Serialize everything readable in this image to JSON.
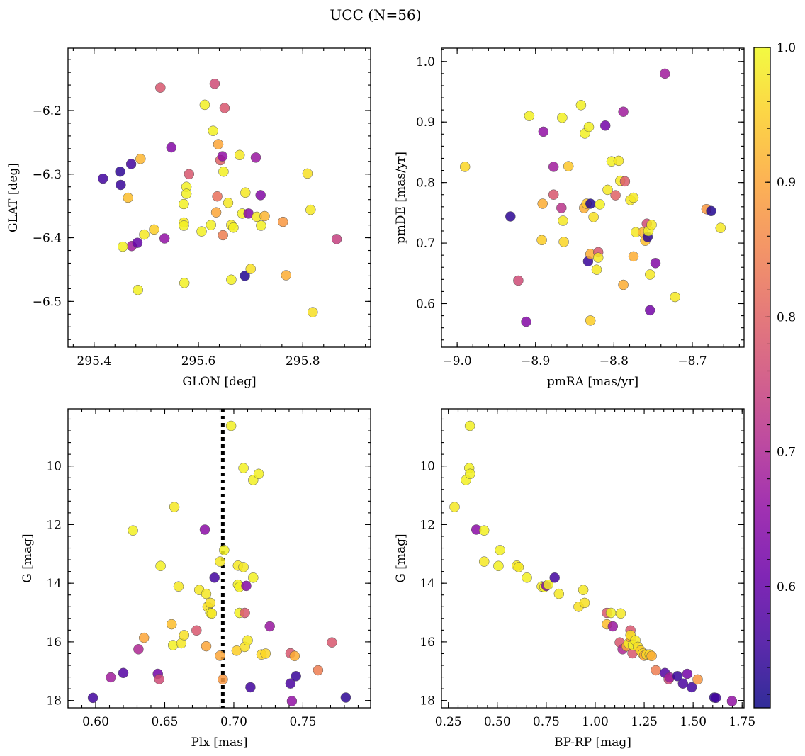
{
  "figure": {
    "title": "UCC (N=56)"
  },
  "colorbar": {
    "vmin": 0.51,
    "vmax": 1.0,
    "ticks": [
      0.6,
      0.7,
      0.8,
      0.9,
      1.0
    ],
    "tick_labels": [
      "0.6",
      "0.7",
      "0.8",
      "0.9",
      "1.0"
    ],
    "colormap": "plasma"
  },
  "chart_data": [
    {
      "type": "scatter",
      "id": "glon-glat",
      "xlabel": "GLON [deg]",
      "ylabel": "GLAT [deg]",
      "xlim": [
        295.35,
        295.93
      ],
      "ylim": [
        -6.572,
        -6.102
      ],
      "xticks": [
        295.4,
        295.6,
        295.8
      ],
      "xtick_labels": [
        "295.4",
        "295.6",
        "295.8"
      ],
      "yticks": [
        -6.2,
        -6.3,
        -6.4,
        -6.5
      ],
      "ytick_labels": [
        "−6.2",
        "−6.3",
        "−6.4",
        "−6.5"
      ],
      "invert_y": false,
      "points": [
        [
          295.417,
          -6.307,
          0.56
        ],
        [
          295.45,
          -6.296,
          0.54
        ],
        [
          295.451,
          -6.317,
          0.55
        ],
        [
          295.471,
          -6.284,
          0.56
        ],
        [
          295.489,
          -6.276,
          0.92
        ],
        [
          295.465,
          -6.337,
          0.93
        ],
        [
          295.472,
          -6.413,
          0.68
        ],
        [
          295.455,
          -6.414,
          0.99
        ],
        [
          295.483,
          -6.408,
          0.6
        ],
        [
          295.496,
          -6.395,
          0.98
        ],
        [
          295.515,
          -6.387,
          0.95
        ],
        [
          295.535,
          -6.401,
          0.66
        ],
        [
          295.484,
          -6.482,
          0.99
        ],
        [
          295.527,
          -6.164,
          0.78
        ],
        [
          295.548,
          -6.258,
          0.64
        ],
        [
          295.582,
          -6.3,
          0.78
        ],
        [
          295.577,
          -6.32,
          0.99
        ],
        [
          295.577,
          -6.331,
          0.99
        ],
        [
          295.572,
          -6.347,
          0.99
        ],
        [
          295.572,
          -6.376,
          0.98
        ],
        [
          295.572,
          -6.381,
          0.99
        ],
        [
          295.573,
          -6.471,
          0.99
        ],
        [
          295.606,
          -6.39,
          0.99
        ],
        [
          295.612,
          -6.191,
          0.99
        ],
        [
          295.628,
          -6.232,
          0.99
        ],
        [
          295.631,
          -6.158,
          0.76
        ],
        [
          295.65,
          -6.196,
          0.78
        ],
        [
          295.638,
          -6.253,
          0.9
        ],
        [
          295.642,
          -6.278,
          0.8
        ],
        [
          295.646,
          -6.272,
          0.66
        ],
        [
          295.648,
          -6.296,
          0.99
        ],
        [
          295.624,
          -6.38,
          0.99
        ],
        [
          295.636,
          -6.335,
          0.82
        ],
        [
          295.634,
          -6.36,
          0.9
        ],
        [
          295.647,
          -6.396,
          0.84
        ],
        [
          295.657,
          -6.345,
          0.98
        ],
        [
          295.663,
          -6.38,
          0.98
        ],
        [
          295.667,
          -6.384,
          0.99
        ],
        [
          295.663,
          -6.466,
          0.99
        ],
        [
          295.679,
          -6.27,
          0.98
        ],
        [
          295.69,
          -6.329,
          0.98
        ],
        [
          295.684,
          -6.362,
          0.99
        ],
        [
          295.696,
          -6.362,
          0.64
        ],
        [
          295.689,
          -6.46,
          0.53
        ],
        [
          295.7,
          -6.449,
          0.97
        ],
        [
          295.71,
          -6.274,
          0.67
        ],
        [
          295.712,
          -6.367,
          0.98
        ],
        [
          295.719,
          -6.333,
          0.64
        ],
        [
          295.72,
          -6.381,
          0.99
        ],
        [
          295.727,
          -6.366,
          0.92
        ],
        [
          295.762,
          -6.375,
          0.88
        ],
        [
          295.768,
          -6.459,
          0.91
        ],
        [
          295.809,
          -6.299,
          0.97
        ],
        [
          295.815,
          -6.356,
          0.98
        ],
        [
          295.819,
          -6.517,
          0.97
        ],
        [
          295.865,
          -6.402,
          0.74
        ]
      ]
    },
    {
      "type": "scatter",
      "id": "pmra-pmde",
      "xlabel": "pmRA [mas/yr]",
      "ylabel": "pmDE [mas/yr]",
      "xlim": [
        -9.02,
        -8.634
      ],
      "ylim": [
        0.528,
        1.022
      ],
      "xticks": [
        -9.0,
        -8.9,
        -8.8,
        -8.7
      ],
      "xtick_labels": [
        "−9.0",
        "−8.9",
        "−8.8",
        "−8.7"
      ],
      "yticks": [
        0.6,
        0.7,
        0.8,
        0.9,
        1.0
      ],
      "ytick_labels": [
        "0.6",
        "0.7",
        "0.8",
        "0.9",
        "1.0"
      ],
      "invert_y": false,
      "points": [
        [
          -8.99,
          0.826,
          0.96
        ],
        [
          -8.932,
          0.744,
          0.54
        ],
        [
          -8.922,
          0.638,
          0.76
        ],
        [
          -8.912,
          0.57,
          0.64
        ],
        [
          -8.908,
          0.91,
          0.99
        ],
        [
          -8.89,
          0.884,
          0.66
        ],
        [
          -8.891,
          0.765,
          0.91
        ],
        [
          -8.892,
          0.705,
          0.95
        ],
        [
          -8.877,
          0.826,
          0.68
        ],
        [
          -8.877,
          0.78,
          0.78
        ],
        [
          -8.866,
          0.907,
          0.99
        ],
        [
          -8.867,
          0.758,
          0.72
        ],
        [
          -8.865,
          0.737,
          0.98
        ],
        [
          -8.864,
          0.702,
          0.96
        ],
        [
          -8.858,
          0.827,
          0.94
        ],
        [
          -8.842,
          0.928,
          0.99
        ],
        [
          -8.837,
          0.881,
          0.99
        ],
        [
          -8.832,
          0.892,
          0.99
        ],
        [
          -8.838,
          0.758,
          0.91
        ],
        [
          -8.835,
          0.765,
          0.94
        ],
        [
          -8.83,
          0.765,
          0.53
        ],
        [
          -8.83,
          0.572,
          0.95
        ],
        [
          -8.833,
          0.67,
          0.55
        ],
        [
          -8.83,
          0.682,
          0.91
        ],
        [
          -8.826,
          0.743,
          0.97
        ],
        [
          -8.82,
          0.685,
          0.78
        ],
        [
          -8.82,
          0.676,
          0.98
        ],
        [
          -8.822,
          0.656,
          0.98
        ],
        [
          -8.818,
          0.764,
          0.99
        ],
        [
          -8.811,
          0.894,
          0.62
        ],
        [
          -8.808,
          0.788,
          0.98
        ],
        [
          -8.803,
          0.835,
          0.99
        ],
        [
          -8.798,
          0.779,
          0.8
        ],
        [
          -8.794,
          0.836,
          0.98
        ],
        [
          -8.792,
          0.803,
          0.98
        ],
        [
          -8.788,
          0.917,
          0.68
        ],
        [
          -8.786,
          0.802,
          0.79
        ],
        [
          -8.788,
          0.631,
          0.91
        ],
        [
          -8.779,
          0.771,
          0.98
        ],
        [
          -8.775,
          0.775,
          0.98
        ],
        [
          -8.775,
          0.678,
          0.91
        ],
        [
          -8.772,
          0.718,
          0.98
        ],
        [
          -8.763,
          0.718,
          0.92
        ],
        [
          -8.76,
          0.704,
          0.93
        ],
        [
          -8.758,
          0.732,
          0.76
        ],
        [
          -8.757,
          0.71,
          0.54
        ],
        [
          -8.756,
          0.72,
          0.99
        ],
        [
          -8.752,
          0.73,
          0.98
        ],
        [
          -8.754,
          0.648,
          0.98
        ],
        [
          -8.754,
          0.589,
          0.62
        ],
        [
          -8.747,
          0.667,
          0.64
        ],
        [
          -8.735,
          0.98,
          0.68
        ],
        [
          -8.722,
          0.611,
          0.98
        ],
        [
          -8.682,
          0.756,
          0.88
        ],
        [
          -8.676,
          0.753,
          0.53
        ],
        [
          -8.664,
          0.725,
          0.98
        ]
      ]
    },
    {
      "type": "scatter",
      "id": "plx-g",
      "xlabel": "Plx [mas]",
      "ylabel": "G [mag]",
      "xlim": [
        0.58,
        0.799
      ],
      "ylim": [
        18.25,
        8.05
      ],
      "xticks": [
        0.6,
        0.65,
        0.7,
        0.75
      ],
      "xtick_labels": [
        "0.60",
        "0.65",
        "0.70",
        "0.75"
      ],
      "yticks": [
        10,
        12,
        14,
        16,
        18
      ],
      "ytick_labels": [
        "10",
        "12",
        "14",
        "16",
        "18"
      ],
      "invert_y": true,
      "vline": 0.692,
      "points": [
        [
          0.598,
          17.91,
          0.56
        ],
        [
          0.611,
          17.21,
          0.68
        ],
        [
          0.62,
          17.06,
          0.58
        ],
        [
          0.627,
          12.2,
          0.99
        ],
        [
          0.631,
          16.25,
          0.7
        ],
        [
          0.635,
          15.86,
          0.9
        ],
        [
          0.645,
          17.09,
          0.62
        ],
        [
          0.646,
          17.27,
          0.76
        ],
        [
          0.647,
          13.41,
          0.99
        ],
        [
          0.655,
          15.4,
          0.93
        ],
        [
          0.656,
          16.11,
          0.99
        ],
        [
          0.657,
          11.4,
          0.98
        ],
        [
          0.66,
          14.11,
          0.98
        ],
        [
          0.662,
          16.05,
          0.98
        ],
        [
          0.664,
          15.77,
          0.97
        ],
        [
          0.673,
          15.61,
          0.78
        ],
        [
          0.675,
          14.23,
          0.98
        ],
        [
          0.679,
          12.17,
          0.65
        ],
        [
          0.68,
          16.15,
          0.9
        ],
        [
          0.68,
          14.36,
          0.98
        ],
        [
          0.681,
          14.8,
          0.97
        ],
        [
          0.683,
          14.67,
          0.97
        ],
        [
          0.683,
          15.01,
          0.99
        ],
        [
          0.684,
          15.03,
          0.98
        ],
        [
          0.686,
          13.81,
          0.56
        ],
        [
          0.69,
          16.47,
          0.9
        ],
        [
          0.69,
          13.26,
          0.98
        ],
        [
          0.692,
          17.28,
          0.88
        ],
        [
          0.693,
          12.87,
          0.99
        ],
        [
          0.698,
          8.63,
          0.99
        ],
        [
          0.702,
          16.3,
          0.95
        ],
        [
          0.703,
          13.4,
          0.98
        ],
        [
          0.703,
          14.05,
          0.99
        ],
        [
          0.704,
          14.13,
          0.99
        ],
        [
          0.704,
          15.01,
          0.99
        ],
        [
          0.707,
          10.07,
          0.99
        ],
        [
          0.707,
          13.45,
          0.98
        ],
        [
          0.708,
          15.01,
          0.78
        ],
        [
          0.708,
          16.17,
          0.97
        ],
        [
          0.709,
          14.09,
          0.64
        ],
        [
          0.71,
          15.95,
          0.98
        ],
        [
          0.712,
          17.55,
          0.56
        ],
        [
          0.714,
          10.48,
          0.99
        ],
        [
          0.714,
          13.81,
          0.99
        ],
        [
          0.718,
          10.27,
          0.99
        ],
        [
          0.72,
          16.43,
          0.96
        ],
        [
          0.723,
          16.4,
          0.96
        ],
        [
          0.726,
          15.47,
          0.67
        ],
        [
          0.741,
          16.39,
          0.78
        ],
        [
          0.741,
          17.42,
          0.57
        ],
        [
          0.742,
          18.02,
          0.66
        ],
        [
          0.744,
          16.48,
          0.91
        ],
        [
          0.745,
          17.17,
          0.55
        ],
        [
          0.761,
          16.97,
          0.84
        ],
        [
          0.771,
          16.02,
          0.78
        ],
        [
          0.781,
          17.9,
          0.54
        ]
      ]
    },
    {
      "type": "scatter",
      "id": "bprp-g",
      "xlabel": "BP-RP [mag]",
      "ylabel": "G [mag]",
      "xlim": [
        0.215,
        1.76
      ],
      "ylim": [
        18.25,
        8.05
      ],
      "xticks": [
        0.25,
        0.5,
        0.75,
        1.0,
        1.25,
        1.5,
        1.75
      ],
      "xtick_labels": [
        "0.25",
        "0.50",
        "0.75",
        "1.00",
        "1.25",
        "1.50",
        "1.75"
      ],
      "yticks": [
        10,
        12,
        14,
        16,
        18
      ],
      "ytick_labels": [
        "10",
        "12",
        "14",
        "16",
        "18"
      ],
      "invert_y": true,
      "points": [
        [
          0.36,
          8.63,
          0.99
        ],
        [
          0.357,
          10.07,
          0.99
        ],
        [
          0.34,
          10.48,
          0.99
        ],
        [
          0.361,
          10.27,
          0.99
        ],
        [
          0.282,
          11.4,
          0.98
        ],
        [
          0.393,
          12.17,
          0.65
        ],
        [
          0.433,
          12.2,
          0.99
        ],
        [
          0.433,
          13.26,
          0.98
        ],
        [
          0.514,
          12.87,
          0.99
        ],
        [
          0.506,
          13.41,
          0.99
        ],
        [
          0.6,
          13.4,
          0.98
        ],
        [
          0.609,
          13.45,
          0.98
        ],
        [
          0.651,
          13.81,
          0.99
        ],
        [
          0.727,
          14.11,
          0.98
        ],
        [
          0.74,
          14.13,
          0.99
        ],
        [
          0.75,
          14.09,
          0.64
        ],
        [
          0.76,
          14.05,
          0.99
        ],
        [
          0.793,
          13.81,
          0.56
        ],
        [
          0.815,
          14.36,
          0.98
        ],
        [
          0.915,
          14.8,
          0.97
        ],
        [
          0.939,
          14.23,
          0.98
        ],
        [
          0.946,
          14.67,
          0.97
        ],
        [
          1.06,
          15.01,
          0.78
        ],
        [
          1.06,
          15.4,
          0.93
        ],
        [
          1.08,
          15.01,
          0.99
        ],
        [
          1.09,
          15.47,
          0.67
        ],
        [
          1.13,
          15.03,
          0.98
        ],
        [
          1.125,
          16.02,
          0.78
        ],
        [
          1.14,
          16.25,
          0.7
        ],
        [
          1.16,
          16.15,
          0.9
        ],
        [
          1.17,
          16.05,
          0.98
        ],
        [
          1.18,
          15.61,
          0.78
        ],
        [
          1.183,
          15.86,
          0.9
        ],
        [
          1.19,
          16.39,
          0.78
        ],
        [
          1.18,
          15.77,
          0.97
        ],
        [
          1.192,
          16.11,
          0.99
        ],
        [
          1.205,
          15.95,
          0.98
        ],
        [
          1.218,
          16.17,
          0.97
        ],
        [
          1.232,
          16.3,
          0.95
        ],
        [
          1.243,
          16.4,
          0.96
        ],
        [
          1.25,
          16.47,
          0.9
        ],
        [
          1.262,
          16.43,
          0.96
        ],
        [
          1.278,
          16.43,
          0.96
        ],
        [
          1.288,
          16.48,
          0.91
        ],
        [
          1.31,
          16.97,
          0.84
        ],
        [
          1.356,
          17.06,
          0.58
        ],
        [
          1.375,
          17.27,
          0.76
        ],
        [
          1.38,
          17.21,
          0.68
        ],
        [
          1.42,
          17.17,
          0.55
        ],
        [
          1.448,
          17.42,
          0.57
        ],
        [
          1.47,
          17.09,
          0.62
        ],
        [
          1.493,
          17.55,
          0.56
        ],
        [
          1.523,
          17.28,
          0.88
        ],
        [
          1.608,
          17.9,
          0.54
        ],
        [
          1.616,
          17.91,
          0.56
        ],
        [
          1.698,
          18.02,
          0.66
        ]
      ]
    }
  ]
}
